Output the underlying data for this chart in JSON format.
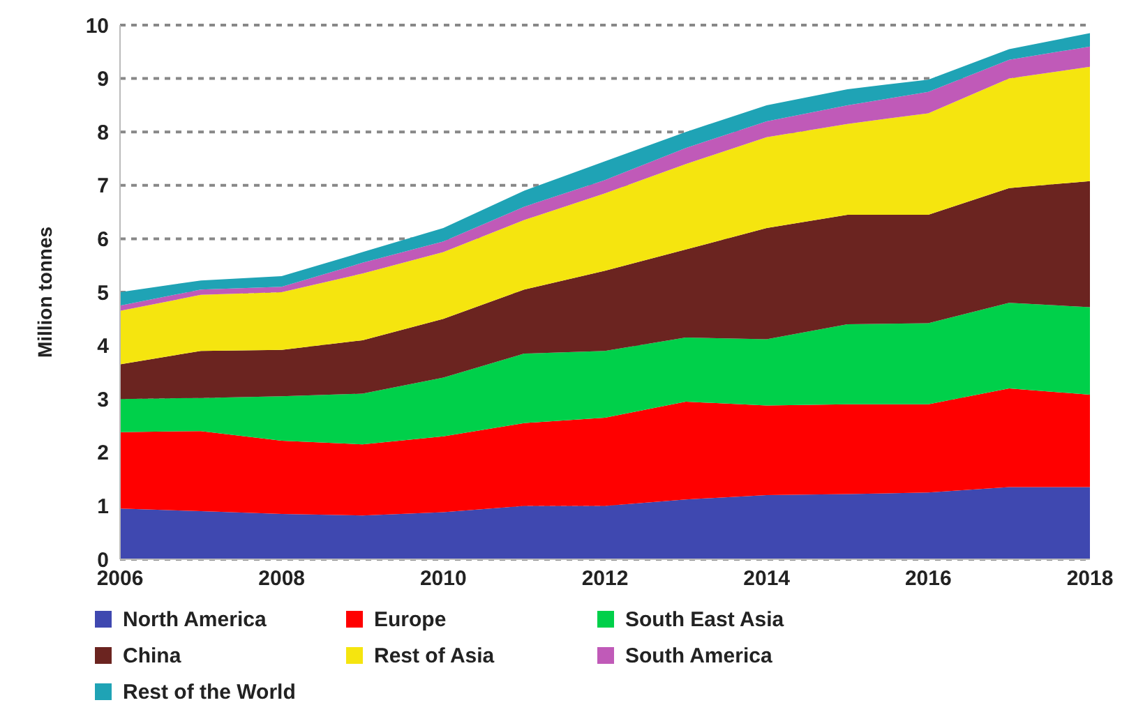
{
  "chart_data": {
    "type": "area",
    "stacked": true,
    "ylabel": "Million tonnes",
    "x": [
      2006,
      2007,
      2008,
      2009,
      2010,
      2011,
      2012,
      2013,
      2014,
      2015,
      2016,
      2017,
      2018
    ],
    "xlim": [
      2006,
      2018
    ],
    "xticks": [
      2006,
      2008,
      2010,
      2012,
      2014,
      2016,
      2018
    ],
    "ylim": [
      0,
      10
    ],
    "yticks": [
      0,
      1,
      2,
      3,
      4,
      5,
      6,
      7,
      8,
      9,
      10
    ],
    "grid": "y",
    "legend": "bottom",
    "series": [
      {
        "name": "North America",
        "color": "#3f48b0",
        "values": [
          0.95,
          0.9,
          0.85,
          0.82,
          0.88,
          1.0,
          1.0,
          1.12,
          1.2,
          1.22,
          1.25,
          1.35,
          1.35
        ]
      },
      {
        "name": "Europe",
        "color": "#ff0000",
        "values": [
          1.43,
          1.5,
          1.37,
          1.33,
          1.42,
          1.55,
          1.65,
          1.83,
          1.68,
          1.68,
          1.65,
          1.85,
          1.73
        ]
      },
      {
        "name": "South East Asia",
        "color": "#00d04a",
        "values": [
          0.62,
          0.62,
          0.83,
          0.95,
          1.1,
          1.3,
          1.25,
          1.2,
          1.24,
          1.5,
          1.52,
          1.6,
          1.64
        ]
      },
      {
        "name": "China",
        "color": "#6b2420",
        "values": [
          0.65,
          0.88,
          0.87,
          1.0,
          1.1,
          1.2,
          1.5,
          1.65,
          2.08,
          2.05,
          2.03,
          2.15,
          2.36
        ]
      },
      {
        "name": "Rest of Asia",
        "color": "#f5e50f",
        "values": [
          1.0,
          1.05,
          1.08,
          1.25,
          1.25,
          1.3,
          1.45,
          1.6,
          1.7,
          1.7,
          1.9,
          2.05,
          2.14
        ]
      },
      {
        "name": "South America",
        "color": "#c05ab8",
        "values": [
          0.1,
          0.1,
          0.1,
          0.2,
          0.2,
          0.25,
          0.25,
          0.3,
          0.3,
          0.35,
          0.4,
          0.35,
          0.38
        ]
      },
      {
        "name": "Rest of the World",
        "color": "#1fa3b5",
        "values": [
          0.25,
          0.17,
          0.2,
          0.2,
          0.25,
          0.3,
          0.35,
          0.3,
          0.3,
          0.3,
          0.23,
          0.2,
          0.25
        ]
      }
    ]
  }
}
